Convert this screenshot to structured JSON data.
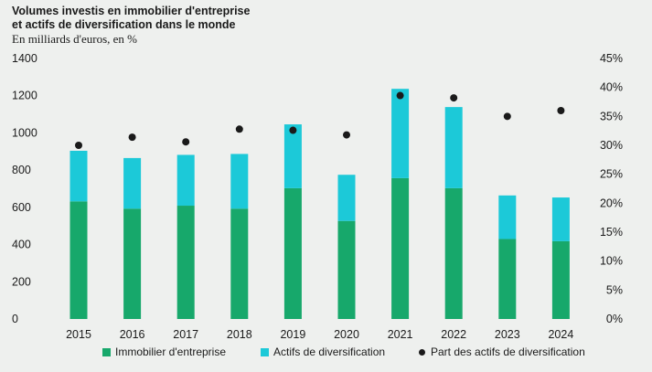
{
  "colors": {
    "primary": "#17a86b",
    "secondary": "#1cc9d8",
    "marker": "#1a1a1a",
    "background": "#eef0ee"
  },
  "chart_data": {
    "type": "bar",
    "stacked": true,
    "title_line1": "Volumes investis en immobilier d'entreprise",
    "title_line2": "et actifs de diversification dans le monde",
    "subtitle": "En milliards d'euros, en %",
    "categories": [
      "2015",
      "2016",
      "2017",
      "2018",
      "2019",
      "2020",
      "2021",
      "2022",
      "2023",
      "2024"
    ],
    "series": [
      {
        "name": "Immobilier d'entreprise",
        "values": [
          632,
          593,
          609,
          593,
          703,
          527,
          757,
          703,
          430,
          418
        ]
      },
      {
        "name": "Actifs de diversification",
        "values": [
          272,
          272,
          273,
          294,
          343,
          248,
          480,
          436,
          234,
          235
        ]
      }
    ],
    "line_series": {
      "name": "Part des actifs de diversification",
      "values": [
        30,
        31.4,
        30.6,
        32.8,
        32.6,
        31.8,
        38.6,
        38.2,
        35,
        36
      ],
      "axis": "right"
    },
    "y_left": {
      "min": 0,
      "max": 1400,
      "ticks": [
        "0",
        "200",
        "400",
        "600",
        "800",
        "1000",
        "1200",
        "1400"
      ]
    },
    "y_right": {
      "min": 0,
      "max": 45,
      "ticks": [
        "0%",
        "5%",
        "10%",
        "15%",
        "20%",
        "25%",
        "30%",
        "35%",
        "40%",
        "45%"
      ]
    },
    "legend_position": "bottom",
    "grid": false
  }
}
